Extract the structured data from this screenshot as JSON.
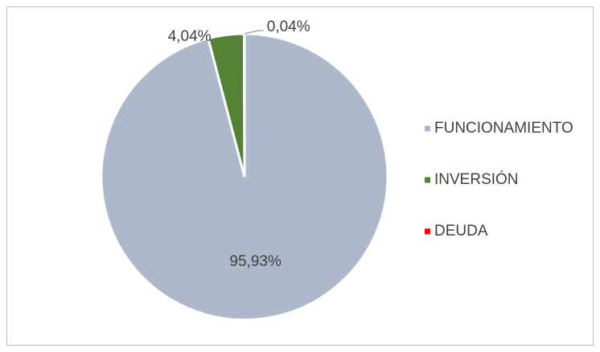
{
  "chart_data": {
    "type": "pie",
    "categories": [
      "FUNCIONAMIENTO",
      "INVERSIÓN",
      "DEUDA"
    ],
    "values": [
      95.93,
      4.04,
      0.04
    ],
    "value_labels": [
      "95,93%",
      "4,04%",
      "0,04%"
    ],
    "colors": [
      "#adb9ca",
      "#548235",
      "#ff0000"
    ],
    "legend": "right"
  }
}
